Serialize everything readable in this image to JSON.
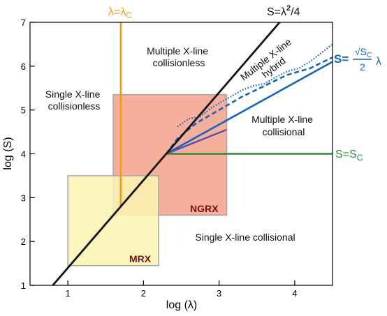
{
  "x_axis": {
    "title": "log (λ)",
    "range": [
      0.5,
      4.5
    ],
    "ticks": [
      "1",
      "2",
      "3",
      "4"
    ]
  },
  "y_axis": {
    "title": "log (S)",
    "range": [
      1,
      7
    ],
    "ticks": [
      "1",
      "2",
      "3",
      "4",
      "5",
      "6",
      "7"
    ]
  },
  "curves": {
    "sweet_parker": {
      "label": "S=λ²/4",
      "color": "#111111"
    },
    "lambda_c": {
      "label": "λ=λc",
      "color": "#f39c12",
      "x": 1.7
    },
    "s_c": {
      "label": "S=Sc",
      "color": "#2e8b35",
      "y": 4.0
    },
    "blue_law": {
      "label_prefix": "S=",
      "numerator": "√Sc",
      "denominator": "2",
      "suffix": "λ",
      "color": "#1565c0"
    }
  },
  "regions": {
    "single_collisionless": [
      "Single X-line",
      "collisionless"
    ],
    "multiple_collisionless": [
      "Multiple X-line",
      "collisionless"
    ],
    "multiple_hybrid": [
      "Multiple X-line",
      "hybrid"
    ],
    "multiple_collisional": [
      "Multiple X-line",
      "collisional"
    ],
    "single_collisional": "Single X-line collisional"
  },
  "boxes": {
    "ngrx": {
      "label": "NGRX",
      "fill": "#f4a188",
      "x": [
        1.6,
        3.1
      ],
      "y": [
        2.6,
        5.35
      ]
    },
    "mrx": {
      "label": "MRX",
      "fill": "#fbf5b0",
      "x": [
        1.0,
        2.2
      ],
      "y": [
        1.45,
        3.5
      ]
    }
  }
}
